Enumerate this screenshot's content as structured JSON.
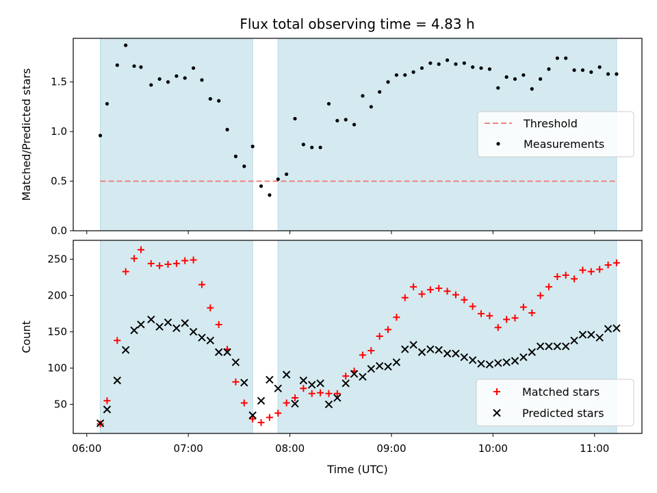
{
  "title": "Flux total observing time = 4.83 h",
  "colors": {
    "shade": "#d4eaf0",
    "threshold": "#f08080",
    "measurement": "#000000",
    "matched": "#ff0000",
    "predicted": "#000000"
  },
  "chart_data": [
    {
      "type": "scatter",
      "ylabel": "Matched/Predicted stars",
      "xlim": [
        "05:52",
        "11:28"
      ],
      "ylim": [
        0,
        1.94
      ],
      "yticks": [
        0.0,
        0.5,
        1.0,
        1.5
      ],
      "ytick_labels": [
        "0.0",
        "0.5",
        "1.0",
        "1.5"
      ],
      "legend_position": "center-right",
      "threshold": {
        "name": "Threshold",
        "value": 0.5,
        "style": "dashed"
      },
      "shaded_intervals": [
        [
          "06:08",
          "07:38"
        ],
        [
          "07:53",
          "11:13"
        ]
      ],
      "series": [
        {
          "name": "Measurements",
          "x": [
            "06:08",
            "06:12",
            "06:18",
            "06:23",
            "06:28",
            "06:32",
            "06:38",
            "06:43",
            "06:48",
            "06:53",
            "06:58",
            "07:03",
            "07:08",
            "07:13",
            "07:18",
            "07:23",
            "07:28",
            "07:33",
            "07:38",
            "07:43",
            "07:48",
            "07:53",
            "07:58",
            "08:03",
            "08:08",
            "08:13",
            "08:18",
            "08:23",
            "08:28",
            "08:33",
            "08:38",
            "08:43",
            "08:48",
            "08:53",
            "08:58",
            "09:03",
            "09:08",
            "09:13",
            "09:18",
            "09:23",
            "09:28",
            "09:33",
            "09:38",
            "09:43",
            "09:48",
            "09:53",
            "09:58",
            "10:03",
            "10:08",
            "10:13",
            "10:18",
            "10:23",
            "10:28",
            "10:33",
            "10:38",
            "10:43",
            "10:48",
            "10:53",
            "10:58",
            "11:03",
            "11:08",
            "11:13"
          ],
          "y": [
            0.96,
            1.28,
            1.67,
            1.87,
            1.66,
            1.65,
            1.47,
            1.53,
            1.5,
            1.56,
            1.54,
            1.64,
            1.52,
            1.33,
            1.31,
            1.02,
            0.75,
            0.65,
            0.85,
            0.45,
            0.36,
            0.52,
            0.57,
            1.13,
            0.87,
            0.84,
            0.84,
            1.28,
            1.11,
            1.12,
            1.07,
            1.36,
            1.25,
            1.4,
            1.5,
            1.57,
            1.57,
            1.6,
            1.64,
            1.69,
            1.68,
            1.72,
            1.68,
            1.69,
            1.65,
            1.64,
            1.63,
            1.44,
            1.55,
            1.53,
            1.57,
            1.43,
            1.53,
            1.63,
            1.74,
            1.74,
            1.62,
            1.62,
            1.6,
            1.65,
            1.58,
            1.58
          ]
        }
      ]
    },
    {
      "type": "scatter",
      "xlabel": "Time (UTC)",
      "ylabel": "Count",
      "xlim": [
        "05:52",
        "11:28"
      ],
      "ylim": [
        10,
        276
      ],
      "xticks": [
        "06:00",
        "07:00",
        "08:00",
        "09:00",
        "10:00",
        "11:00"
      ],
      "yticks": [
        50,
        100,
        150,
        200,
        250
      ],
      "legend_position": "bottom-right",
      "shaded_intervals": [
        [
          "06:08",
          "07:38"
        ],
        [
          "07:53",
          "11:13"
        ]
      ],
      "series": [
        {
          "name": "Matched stars",
          "marker": "+",
          "x": [
            "06:08",
            "06:12",
            "06:18",
            "06:23",
            "06:28",
            "06:32",
            "06:38",
            "06:43",
            "06:48",
            "06:53",
            "06:58",
            "07:03",
            "07:08",
            "07:13",
            "07:18",
            "07:23",
            "07:28",
            "07:33",
            "07:38",
            "07:43",
            "07:48",
            "07:53",
            "07:58",
            "08:03",
            "08:08",
            "08:13",
            "08:18",
            "08:23",
            "08:28",
            "08:33",
            "08:38",
            "08:43",
            "08:48",
            "08:53",
            "08:58",
            "09:03",
            "09:08",
            "09:13",
            "09:18",
            "09:23",
            "09:28",
            "09:33",
            "09:38",
            "09:43",
            "09:48",
            "09:53",
            "09:58",
            "10:03",
            "10:08",
            "10:13",
            "10:18",
            "10:23",
            "10:28",
            "10:33",
            "10:38",
            "10:43",
            "10:48",
            "10:53",
            "10:58",
            "11:03",
            "11:08",
            "11:13"
          ],
          "y": [
            23,
            55,
            138,
            233,
            251,
            263,
            244,
            241,
            243,
            244,
            248,
            249,
            215,
            183,
            160,
            126,
            81,
            52,
            30,
            25,
            32,
            38,
            52,
            59,
            72,
            65,
            66,
            65,
            65,
            89,
            96,
            118,
            124,
            144,
            153,
            170,
            197,
            212,
            202,
            208,
            210,
            206,
            201,
            194,
            185,
            175,
            172,
            156,
            167,
            169,
            184,
            176,
            200,
            212,
            226,
            228,
            223,
            235,
            233,
            236,
            242,
            245
          ]
        },
        {
          "name": "Predicted stars",
          "marker": "x",
          "x": [
            "06:08",
            "06:12",
            "06:18",
            "06:23",
            "06:28",
            "06:32",
            "06:38",
            "06:43",
            "06:48",
            "06:53",
            "06:58",
            "07:03",
            "07:08",
            "07:13",
            "07:18",
            "07:23",
            "07:28",
            "07:33",
            "07:38",
            "07:43",
            "07:48",
            "07:53",
            "07:58",
            "08:03",
            "08:08",
            "08:13",
            "08:18",
            "08:23",
            "08:28",
            "08:33",
            "08:38",
            "08:43",
            "08:48",
            "08:53",
            "08:58",
            "09:03",
            "09:08",
            "09:13",
            "09:18",
            "09:23",
            "09:28",
            "09:33",
            "09:38",
            "09:43",
            "09:48",
            "09:53",
            "09:58",
            "10:03",
            "10:08",
            "10:13",
            "10:18",
            "10:23",
            "10:28",
            "10:33",
            "10:38",
            "10:43",
            "10:48",
            "10:53",
            "10:58",
            "11:03",
            "11:08",
            "11:13"
          ],
          "y": [
            24,
            43,
            83,
            125,
            152,
            160,
            167,
            157,
            163,
            155,
            162,
            150,
            142,
            138,
            122,
            122,
            108,
            80,
            35,
            55,
            84,
            72,
            91,
            51,
            83,
            77,
            79,
            50,
            59,
            79,
            92,
            88,
            99,
            103,
            102,
            108,
            126,
            132,
            122,
            126,
            125,
            120,
            120,
            115,
            111,
            106,
            105,
            107,
            108,
            110,
            115,
            122,
            130,
            130,
            130,
            130,
            138,
            146,
            146,
            142,
            154,
            155
          ]
        }
      ]
    }
  ]
}
